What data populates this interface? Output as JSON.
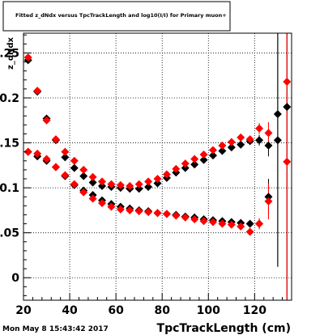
{
  "header": {
    "title": "Fitted z_dNdx versus TpcTrackLength and log10(I/I) for Primary muon+"
  },
  "footer": {
    "timestamp": "Mon May  8 15:43:42 2017"
  },
  "colors": {
    "black_series": "#000000",
    "red_series": "#ff0000",
    "grid": "#000000",
    "background": "#ffffff"
  },
  "chart_data": {
    "type": "scatter",
    "title": "Fitted z_dNdx versus TpcTrackLength and log10(I/I) for Primary muon+",
    "xlabel": "TpcTrackLength (cm)",
    "ylabel": "z_dNdx",
    "xlim": [
      20,
      136
    ],
    "ylim": [
      -0.025,
      0.272
    ],
    "xticks": [
      "20",
      "40",
      "60",
      "80",
      "100",
      "120"
    ],
    "xtick_values": [
      20,
      40,
      60,
      80,
      100,
      120
    ],
    "yticks": [
      "0",
      "0.05",
      "0.1",
      "0.15",
      "0.2",
      "0.25"
    ],
    "ytick_values": [
      0,
      0.05,
      0.1,
      0.15,
      0.2,
      0.25
    ],
    "grid": true,
    "marker": "diamond",
    "series": [
      {
        "color": "#000000",
        "x": [
          22,
          26,
          30,
          34,
          38,
          42,
          46,
          50,
          54,
          58,
          62,
          66,
          70,
          74,
          78,
          82,
          86,
          90,
          94,
          98,
          102,
          106,
          110,
          114,
          118,
          122,
          126,
          130,
          134
        ],
        "y": [
          0.242,
          0.207,
          0.177,
          0.153,
          0.134,
          0.122,
          0.113,
          0.106,
          0.102,
          0.101,
          0.1,
          0.099,
          0.099,
          0.101,
          0.105,
          0.111,
          0.117,
          0.122,
          0.126,
          0.131,
          0.136,
          0.141,
          0.145,
          0.148,
          0.152,
          0.153,
          0.147,
          0.153,
          0.19
        ],
        "yerr": [
          0.002,
          0.002,
          0.002,
          0.002,
          0.002,
          0.002,
          0.002,
          0.002,
          0.002,
          0.002,
          0.002,
          0.002,
          0.002,
          0.002,
          0.002,
          0.002,
          0.002,
          0.002,
          0.002,
          0.002,
          0.002,
          0.002,
          0.002,
          0.002,
          0.003,
          0.006,
          0.012,
          0.14,
          0.25
        ]
      },
      {
        "color": "#000000",
        "x": [
          22,
          26,
          30,
          34,
          38,
          42,
          46,
          50,
          54,
          58,
          62,
          66,
          70,
          74,
          78,
          82,
          86,
          90,
          94,
          98,
          102,
          106,
          110,
          114,
          118,
          122,
          126,
          130
        ],
        "y": [
          0.14,
          0.135,
          0.13,
          0.123,
          0.113,
          0.103,
          0.097,
          0.092,
          0.086,
          0.082,
          0.079,
          0.077,
          0.075,
          0.074,
          0.072,
          0.071,
          0.07,
          0.068,
          0.067,
          0.065,
          0.064,
          0.063,
          0.062,
          0.061,
          0.06,
          0.06,
          0.09,
          0.182
        ],
        "yerr": [
          0.002,
          0.002,
          0.002,
          0.002,
          0.002,
          0.002,
          0.002,
          0.002,
          0.002,
          0.002,
          0.002,
          0.002,
          0.002,
          0.002,
          0.002,
          0.002,
          0.002,
          0.002,
          0.002,
          0.002,
          0.002,
          0.002,
          0.002,
          0.002,
          0.004,
          0.006,
          0.02,
          0.17
        ]
      },
      {
        "color": "#ff0000",
        "x": [
          22,
          26,
          30,
          34,
          38,
          42,
          46,
          50,
          54,
          58,
          62,
          66,
          70,
          74,
          78,
          82,
          86,
          90,
          94,
          98,
          102,
          106,
          110,
          114,
          118,
          122,
          126,
          134
        ],
        "y": [
          0.245,
          0.208,
          0.175,
          0.154,
          0.14,
          0.13,
          0.12,
          0.112,
          0.107,
          0.104,
          0.103,
          0.102,
          0.104,
          0.107,
          0.11,
          0.115,
          0.121,
          0.127,
          0.132,
          0.137,
          0.142,
          0.147,
          0.151,
          0.156,
          0.154,
          0.166,
          0.161,
          0.129
        ],
        "yerr": [
          0.002,
          0.002,
          0.002,
          0.002,
          0.002,
          0.002,
          0.002,
          0.002,
          0.002,
          0.002,
          0.002,
          0.002,
          0.002,
          0.002,
          0.002,
          0.002,
          0.002,
          0.002,
          0.002,
          0.002,
          0.002,
          0.002,
          0.002,
          0.002,
          0.003,
          0.006,
          0.012,
          0.25
        ]
      },
      {
        "color": "#ff0000",
        "x": [
          22,
          26,
          30,
          34,
          38,
          42,
          46,
          50,
          54,
          58,
          62,
          66,
          70,
          74,
          78,
          82,
          86,
          90,
          94,
          98,
          102,
          106,
          110,
          114,
          118,
          122,
          126,
          134
        ],
        "y": [
          0.14,
          0.138,
          0.132,
          0.123,
          0.114,
          0.104,
          0.095,
          0.088,
          0.083,
          0.079,
          0.076,
          0.075,
          0.074,
          0.073,
          0.072,
          0.071,
          0.069,
          0.067,
          0.065,
          0.063,
          0.062,
          0.06,
          0.059,
          0.057,
          0.051,
          0.06,
          0.085,
          0.218
        ],
        "yerr": [
          0.002,
          0.002,
          0.002,
          0.002,
          0.002,
          0.002,
          0.002,
          0.002,
          0.002,
          0.002,
          0.002,
          0.002,
          0.002,
          0.002,
          0.002,
          0.002,
          0.002,
          0.002,
          0.002,
          0.002,
          0.002,
          0.002,
          0.002,
          0.002,
          0.004,
          0.006,
          0.02,
          0.25
        ]
      }
    ]
  }
}
